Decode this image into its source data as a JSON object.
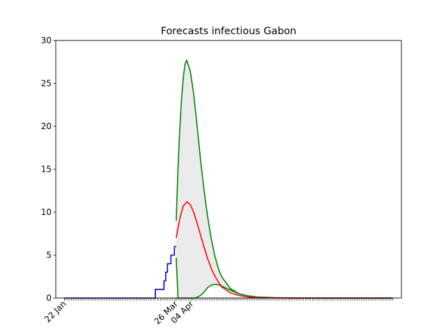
{
  "chart_data": {
    "type": "line",
    "title": "Forecasts infectious Gabon",
    "xlabel": "",
    "ylabel": "",
    "ylim": [
      0,
      30
    ],
    "yticks": [
      0,
      5,
      10,
      15,
      20,
      25,
      30
    ],
    "x_tick_labels": [
      "22 Jan",
      "26 Mar",
      "04 Apr"
    ],
    "x_tick_label_days": [
      0,
      64,
      73
    ],
    "xlim_days": [
      -5,
      193
    ],
    "minor_tick_days": {
      "start": 0,
      "end": 188,
      "step": 1
    },
    "grid": false,
    "legend": "none",
    "colors": {
      "observed": "#0000cc",
      "forecast": "#ff0000",
      "bounds": "#008000",
      "band_fill": "#ebebeb"
    },
    "series": [
      {
        "role": "observed",
        "x_days": [
          0,
          10,
          20,
          30,
          40,
          50,
          51,
          52,
          53,
          54,
          55,
          56,
          57,
          58,
          59,
          60,
          61,
          62,
          63,
          64
        ],
        "values": [
          0,
          0,
          0,
          0,
          0,
          0,
          0,
          1,
          1,
          1,
          1,
          1,
          2,
          3,
          4,
          4,
          5,
          5,
          6,
          6
        ]
      },
      {
        "role": "forecast",
        "x_days": [
          64,
          66,
          68,
          70,
          72,
          74,
          76,
          78,
          80,
          82,
          84,
          86,
          88,
          90,
          95,
          100,
          105,
          110,
          120,
          130,
          140,
          150,
          160,
          170,
          180,
          188
        ],
        "values": [
          7,
          9.2,
          10.7,
          11.2,
          10.9,
          10.0,
          8.7,
          7.3,
          5.9,
          4.6,
          3.5,
          2.6,
          1.9,
          1.3,
          0.6,
          0.3,
          0.12,
          0.05,
          0.02,
          0.01,
          0,
          0,
          0,
          0,
          0,
          0
        ]
      },
      {
        "role": "upper_bound",
        "x_days": [
          64,
          65,
          66,
          67,
          68,
          69,
          70,
          72,
          74,
          76,
          78,
          80,
          82,
          84,
          86,
          88,
          90,
          95,
          100,
          105,
          110,
          120,
          130,
          140,
          150,
          160,
          170,
          180,
          188
        ],
        "values": [
          9,
          15,
          19.5,
          23,
          25.6,
          27.2,
          27.7,
          26.5,
          23.8,
          20.0,
          16.0,
          12.5,
          9.5,
          7.0,
          5.0,
          3.5,
          2.5,
          1.1,
          0.5,
          0.25,
          0.12,
          0.04,
          0.01,
          0,
          0,
          0,
          0,
          0,
          0
        ]
      },
      {
        "role": "lower_bound",
        "x_days": [
          64,
          64.5,
          65,
          70,
          75,
          78,
          80,
          82,
          84,
          86,
          88,
          90,
          95,
          100,
          105,
          110,
          120,
          130,
          140,
          150,
          160,
          170,
          180,
          188
        ],
        "values": [
          4.7,
          2.5,
          0,
          0,
          0,
          0.3,
          0.7,
          1.2,
          1.5,
          1.6,
          1.55,
          1.4,
          0.9,
          0.5,
          0.25,
          0.12,
          0.04,
          0.01,
          0,
          0,
          0,
          0,
          0,
          0
        ]
      }
    ]
  }
}
